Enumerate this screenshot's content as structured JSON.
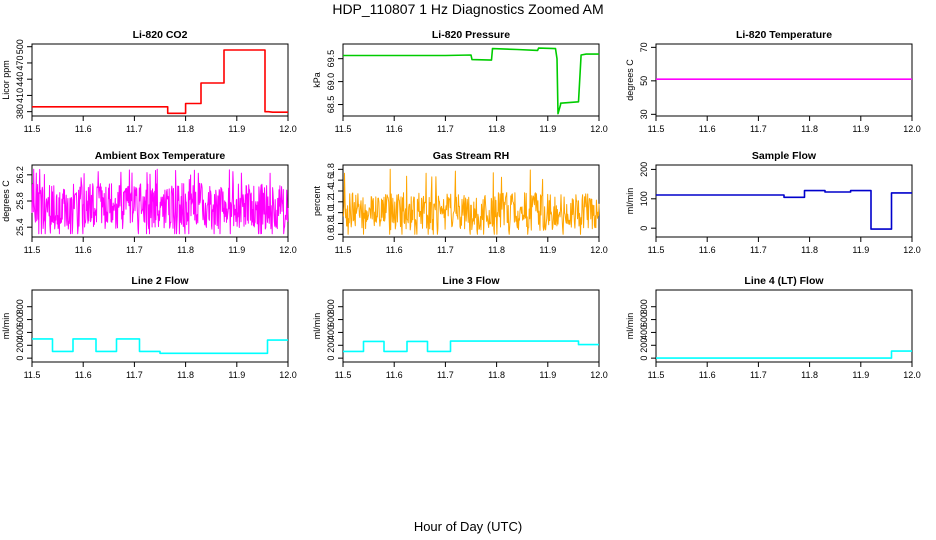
{
  "figure": {
    "title": "HDP_110807  1 Hz Diagnostics Zoomed AM",
    "xlabel": "Hour of Day (UTC)"
  },
  "chart_data": [
    {
      "id": "co2",
      "type": "line",
      "title": "Li-820 CO2",
      "ylabel": "Licor ppm",
      "color": "#ff0000",
      "xlim": [
        11.5,
        12.0
      ],
      "ylim": [
        372,
        505
      ],
      "xticks": [
        "11.5",
        "11.6",
        "11.7",
        "11.8",
        "11.9",
        "12.0"
      ],
      "yticks": [
        "380",
        "410",
        "440",
        "470",
        "500"
      ],
      "series": [
        {
          "x": [
            11.5,
            11.765,
            11.765,
            11.8,
            11.8,
            11.83,
            11.83,
            11.875,
            11.875,
            11.955,
            11.955,
            11.962,
            11.97,
            12.0
          ],
          "values": [
            389,
            389,
            377,
            377,
            395,
            395,
            433,
            433,
            494,
            494,
            380,
            380,
            379,
            379
          ]
        }
      ]
    },
    {
      "id": "pressure",
      "type": "line",
      "title": "Li-820 Pressure",
      "ylabel": "kPa",
      "color": "#00cc00",
      "xlim": [
        11.5,
        12.0
      ],
      "ylim": [
        68.25,
        69.82
      ],
      "xticks": [
        "11.5",
        "11.6",
        "11.7",
        "11.8",
        "11.9",
        "12.0"
      ],
      "yticks": [
        "68.5",
        "69.0",
        "69.5"
      ],
      "series": [
        {
          "x": [
            11.5,
            11.7,
            11.75,
            11.752,
            11.79,
            11.792,
            11.84,
            11.88,
            11.882,
            11.915,
            11.918,
            11.92,
            11.925,
            11.925,
            11.96,
            11.965,
            11.975,
            12.0
          ],
          "values": [
            69.57,
            69.57,
            69.58,
            69.48,
            69.47,
            69.72,
            69.7,
            69.68,
            69.73,
            69.72,
            69.5,
            68.3,
            68.5,
            68.53,
            68.56,
            69.58,
            69.6,
            69.6
          ]
        }
      ]
    },
    {
      "id": "temp820",
      "type": "line",
      "title": "Li-820 Temperature",
      "ylabel": "degrees C",
      "color": "#ff00ff",
      "xlim": [
        11.5,
        12.0
      ],
      "ylim": [
        29,
        72
      ],
      "xticks": [
        "11.5",
        "11.6",
        "11.7",
        "11.8",
        "11.9",
        "12.0"
      ],
      "yticks": [
        "30",
        "50",
        "70"
      ],
      "series": [
        {
          "x": [
            11.5,
            12.0
          ],
          "values": [
            51,
            51
          ]
        }
      ]
    },
    {
      "id": "boxtemp",
      "type": "line",
      "title": "Ambient Box Temperature",
      "ylabel": "degrees C",
      "color": "#ff00ff",
      "xlim": [
        11.5,
        12.0
      ],
      "ylim": [
        25.25,
        26.35
      ],
      "xticks": [
        "11.5",
        "11.6",
        "11.7",
        "11.8",
        "11.9",
        "12.0"
      ],
      "yticks": [
        "25.4",
        "25.8",
        "26.2"
      ],
      "series": [
        {
          "noise": {
            "mean": 25.72,
            "amplitude": 0.35,
            "min": 25.3,
            "max": 26.3,
            "points": 600
          }
        }
      ]
    },
    {
      "id": "rh",
      "type": "line",
      "title": "Gas Stream RH",
      "ylabel": "percent",
      "color": "#ffa500",
      "xlim": [
        11.5,
        12.0
      ],
      "ylim": [
        0.55,
        1.88
      ],
      "xticks": [
        "11.5",
        "11.6",
        "11.7",
        "11.8",
        "11.9",
        "12.0"
      ],
      "yticks": [
        "0.6",
        "0.8",
        "1.0",
        "1.2",
        "1.4",
        "1.6",
        "1.8"
      ],
      "series": [
        {
          "noise": {
            "mean": 1.02,
            "amplitude": 0.35,
            "min": 0.6,
            "max": 1.82,
            "points": 500
          }
        }
      ]
    },
    {
      "id": "sampleflow",
      "type": "line",
      "title": "Sample Flow",
      "ylabel": "ml/min",
      "color": "#0000cc",
      "xlim": [
        11.5,
        12.0
      ],
      "ylim": [
        -30,
        215
      ],
      "xticks": [
        "11.5",
        "11.6",
        "11.7",
        "11.8",
        "11.9",
        "12.0"
      ],
      "yticks": [
        "0",
        "100",
        "200"
      ],
      "series": [
        {
          "x": [
            11.5,
            11.75,
            11.75,
            11.79,
            11.79,
            11.83,
            11.83,
            11.88,
            11.88,
            11.92,
            11.92,
            11.96,
            11.96,
            12.0
          ],
          "values": [
            113,
            113,
            105,
            105,
            128,
            128,
            123,
            123,
            128,
            128,
            -3,
            -3,
            120,
            120
          ]
        }
      ]
    },
    {
      "id": "line2",
      "type": "line",
      "title": "Line 2 Flow",
      "ylabel": "ml/min",
      "color": "#00ffff",
      "xlim": [
        11.5,
        12.0
      ],
      "ylim": [
        -60,
        1060
      ],
      "xticks": [
        "11.5",
        "11.6",
        "11.7",
        "11.8",
        "11.9",
        "12.0"
      ],
      "yticks": [
        "0",
        "200",
        "400",
        "600",
        "800"
      ],
      "series": [
        {
          "x": [
            11.5,
            11.54,
            11.54,
            11.58,
            11.58,
            11.625,
            11.625,
            11.665,
            11.665,
            11.71,
            11.71,
            11.75,
            11.75,
            11.96,
            11.96,
            12.0
          ],
          "values": [
            300,
            300,
            105,
            105,
            300,
            300,
            105,
            105,
            300,
            300,
            105,
            105,
            75,
            75,
            280,
            280
          ]
        }
      ]
    },
    {
      "id": "line3",
      "type": "line",
      "title": "Line 3 Flow",
      "ylabel": "ml/min",
      "color": "#00ffff",
      "xlim": [
        11.5,
        12.0
      ],
      "ylim": [
        -60,
        1060
      ],
      "xticks": [
        "11.5",
        "11.6",
        "11.7",
        "11.8",
        "11.9",
        "12.0"
      ],
      "yticks": [
        "0",
        "200",
        "400",
        "600",
        "800"
      ],
      "series": [
        {
          "x": [
            11.5,
            11.54,
            11.54,
            11.58,
            11.58,
            11.625,
            11.625,
            11.665,
            11.665,
            11.71,
            11.71,
            11.96,
            11.96,
            12.0
          ],
          "values": [
            105,
            105,
            260,
            260,
            105,
            105,
            260,
            260,
            105,
            105,
            265,
            265,
            210,
            210
          ]
        }
      ]
    },
    {
      "id": "line4",
      "type": "line",
      "title": "Line 4 (LT) Flow",
      "ylabel": "ml/min",
      "color": "#00ffff",
      "xlim": [
        11.5,
        12.0
      ],
      "ylim": [
        -60,
        1060
      ],
      "xticks": [
        "11.5",
        "11.6",
        "11.7",
        "11.8",
        "11.9",
        "12.0"
      ],
      "yticks": [
        "0",
        "200",
        "400",
        "600",
        "800"
      ],
      "series": [
        {
          "x": [
            11.5,
            11.96,
            11.96,
            12.0
          ],
          "values": [
            0,
            0,
            110,
            110
          ]
        }
      ]
    }
  ]
}
